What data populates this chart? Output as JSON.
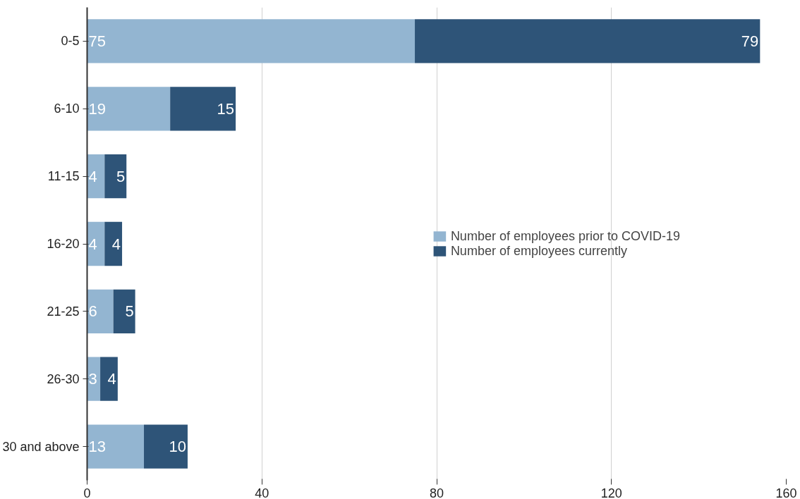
{
  "chart_data": {
    "type": "bar",
    "orientation": "horizontal",
    "stacked": true,
    "categories": [
      "0-5",
      "6-10",
      "11-15",
      "16-20",
      "21-25",
      "26-30",
      "30 and above"
    ],
    "series": [
      {
        "name": "Number of employees prior to COVID-19",
        "color": "#93b5d1",
        "values": [
          75,
          19,
          4,
          4,
          6,
          3,
          13
        ]
      },
      {
        "name": "Number of employees currently",
        "color": "#2e5478",
        "values": [
          79,
          15,
          5,
          4,
          5,
          4,
          10
        ]
      }
    ],
    "xlim": [
      0,
      160
    ],
    "xticks": [
      0,
      40,
      80,
      120,
      160
    ],
    "grid": "x",
    "legend": "right",
    "data_labels": true
  }
}
